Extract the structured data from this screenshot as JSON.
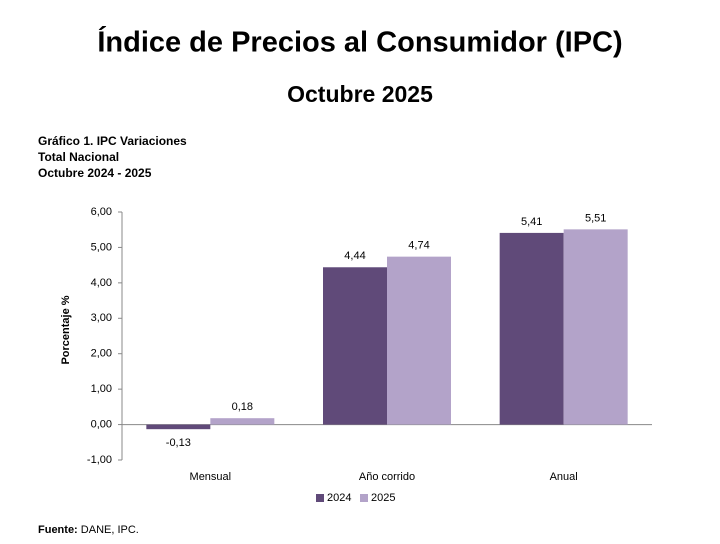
{
  "header": {
    "title": "Índice de Precios al Consumidor (IPC)",
    "subtitle": "Octubre 2025"
  },
  "chart_data": {
    "type": "bar",
    "title_lines": [
      "Gráfico 1. IPC Variaciones",
      "Total Nacional",
      "Octubre 2024 - 2025"
    ],
    "y_label": "Porcentaje %",
    "categories": [
      "Mensual",
      "Año corrido",
      "Anual"
    ],
    "series": [
      {
        "name": "2024",
        "color": "#604a79",
        "values": [
          -0.13,
          4.44,
          5.41
        ],
        "value_labels": [
          "-0,13",
          "4,44",
          "5,41"
        ]
      },
      {
        "name": "2025",
        "color": "#b3a3c9",
        "values": [
          0.18,
          4.74,
          5.51
        ],
        "value_labels": [
          "0,18",
          "4,74",
          "5,51"
        ]
      }
    ],
    "ylim": [
      -1,
      6
    ],
    "yticks": [
      {
        "value": -1,
        "label": "-1,00"
      },
      {
        "value": 0,
        "label": "0,00"
      },
      {
        "value": 1,
        "label": "1,00"
      },
      {
        "value": 2,
        "label": "2,00"
      },
      {
        "value": 3,
        "label": "3,00"
      },
      {
        "value": 4,
        "label": "4,00"
      },
      {
        "value": 5,
        "label": "5,00"
      },
      {
        "value": 6,
        "label": "6,00"
      }
    ],
    "grid": false,
    "legend": "bottom"
  },
  "source": {
    "label": "Fuente:",
    "text": "DANE, IPC."
  }
}
